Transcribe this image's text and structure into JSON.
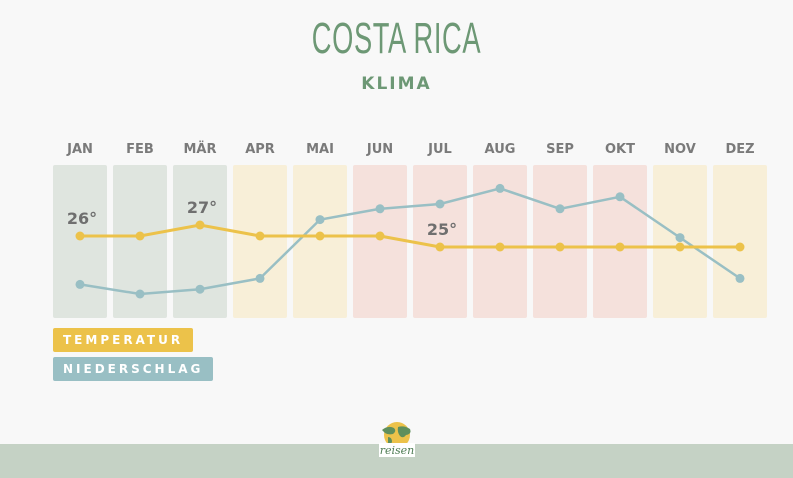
{
  "header": {
    "title": "COSTA RICA",
    "subtitle": "KLIMA"
  },
  "chart_data": {
    "type": "line",
    "categories": [
      "JAN",
      "FEB",
      "MÄR",
      "APR",
      "MAI",
      "JUN",
      "JUL",
      "AUG",
      "SEP",
      "OKT",
      "NOV",
      "DEZ"
    ],
    "series": [
      {
        "name": "TEMPERATUR",
        "unit": "°",
        "color": "#ecc24a",
        "values": [
          26,
          26,
          27,
          26,
          26,
          26,
          25,
          25,
          25,
          25,
          25,
          25
        ]
      },
      {
        "name": "NIEDERSCHLAG",
        "color": "#99bfc4",
        "relative_level": [
          13,
          5,
          9,
          18,
          67,
          76,
          80,
          93,
          76,
          86,
          52,
          18
        ]
      }
    ],
    "data_labels": [
      {
        "month": "JAN",
        "text": "26°"
      },
      {
        "month": "MÄR",
        "text": "27°"
      },
      {
        "month": "JUL",
        "text": "25°"
      }
    ],
    "season_bands": [
      "dry",
      "dry",
      "dry",
      "transition",
      "transition",
      "rain",
      "rain",
      "rain",
      "rain",
      "rain",
      "transition",
      "transition"
    ],
    "band_colors": {
      "dry": "#dfe5df",
      "transition": "#f8efd8",
      "rain": "#f5e1dc"
    },
    "grid": false
  },
  "legend": {
    "temperature": "TEMPERATUR",
    "precipitation": "NIEDERSCHLAG"
  },
  "footer": {
    "logo_text": "reisen"
  }
}
